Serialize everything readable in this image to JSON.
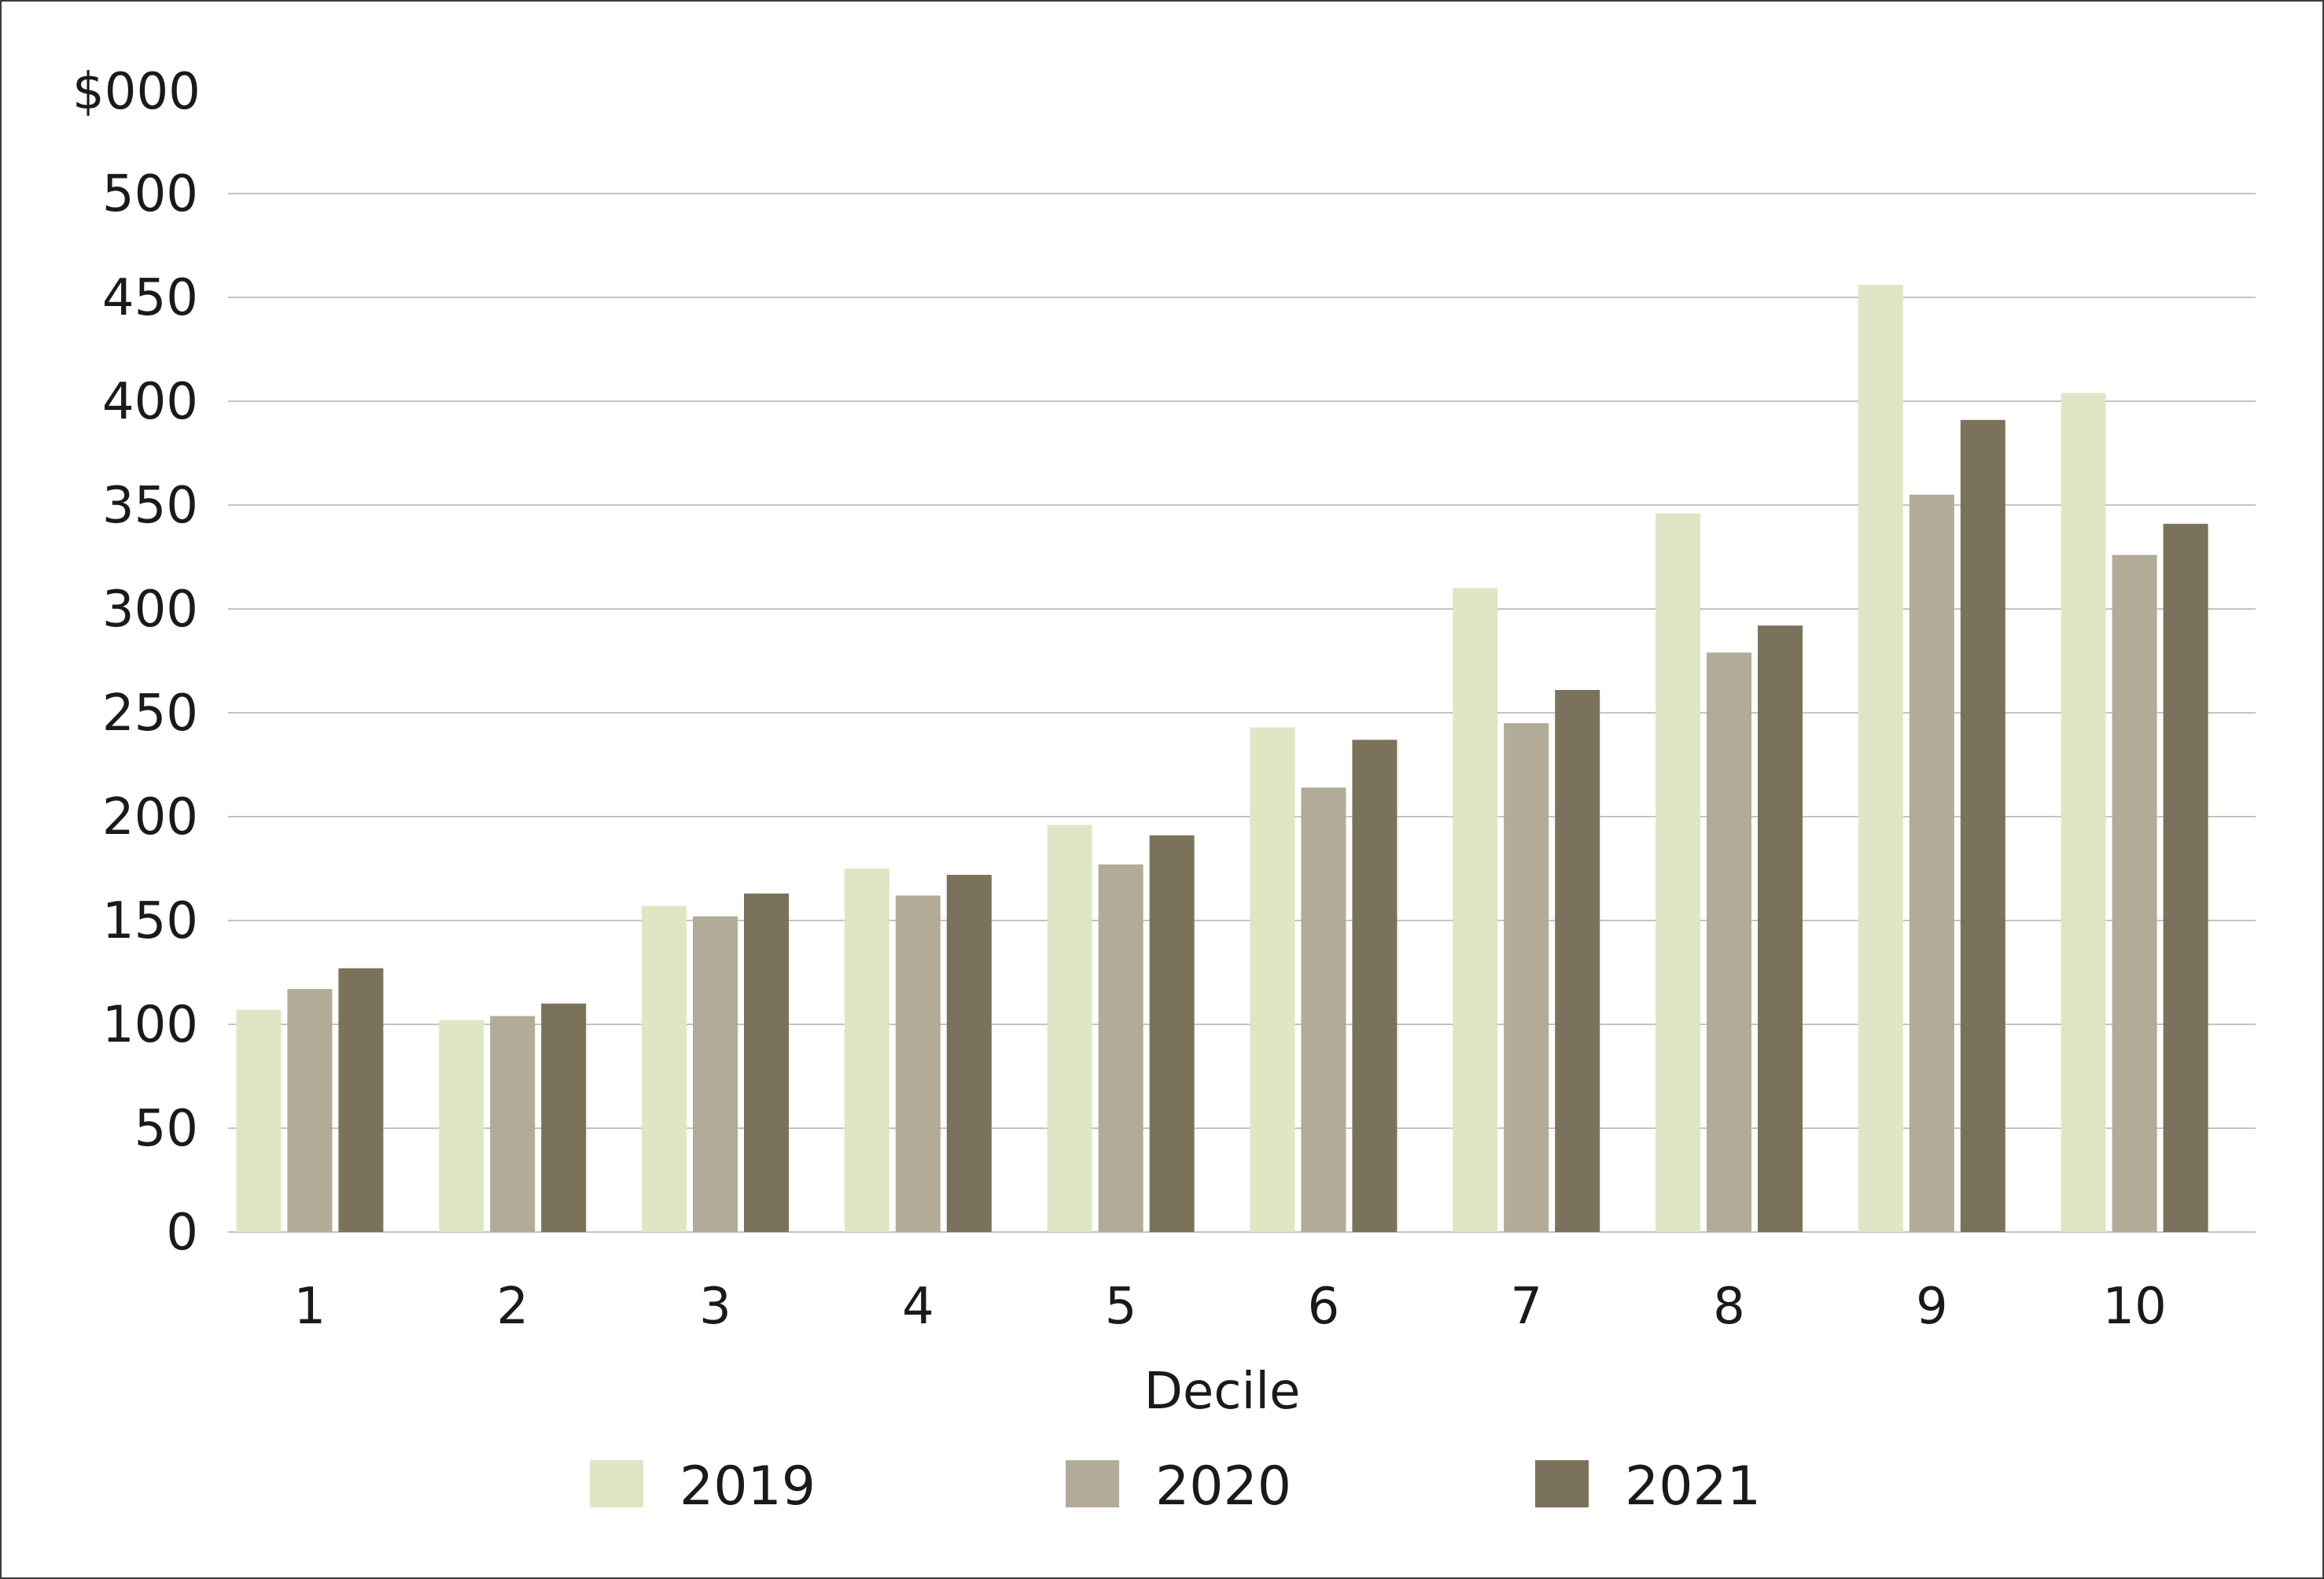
{
  "chart_data": {
    "type": "bar",
    "title": "",
    "unit_label": "$000",
    "xlabel": "Decile",
    "ylabel": "",
    "ylim": [
      0,
      500
    ],
    "yticks": [
      0,
      50,
      100,
      150,
      200,
      250,
      300,
      350,
      400,
      450,
      500
    ],
    "grid": true,
    "legend_position": "bottom",
    "categories": [
      "1",
      "2",
      "3",
      "4",
      "5",
      "6",
      "7",
      "8",
      "9",
      "10"
    ],
    "series": [
      {
        "name": "2019",
        "color": "#dfe6c5",
        "values": [
          107,
          102,
          157,
          175,
          196,
          243,
          310,
          346,
          456,
          404
        ]
      },
      {
        "name": "2020",
        "color": "#b1ab98",
        "values": [
          117,
          104,
          152,
          162,
          177,
          214,
          245,
          279,
          355,
          326
        ]
      },
      {
        "name": "2021",
        "color": "#7a725a",
        "values": [
          127,
          110,
          163,
          172,
          191,
          237,
          261,
          292,
          391,
          341
        ]
      }
    ]
  }
}
